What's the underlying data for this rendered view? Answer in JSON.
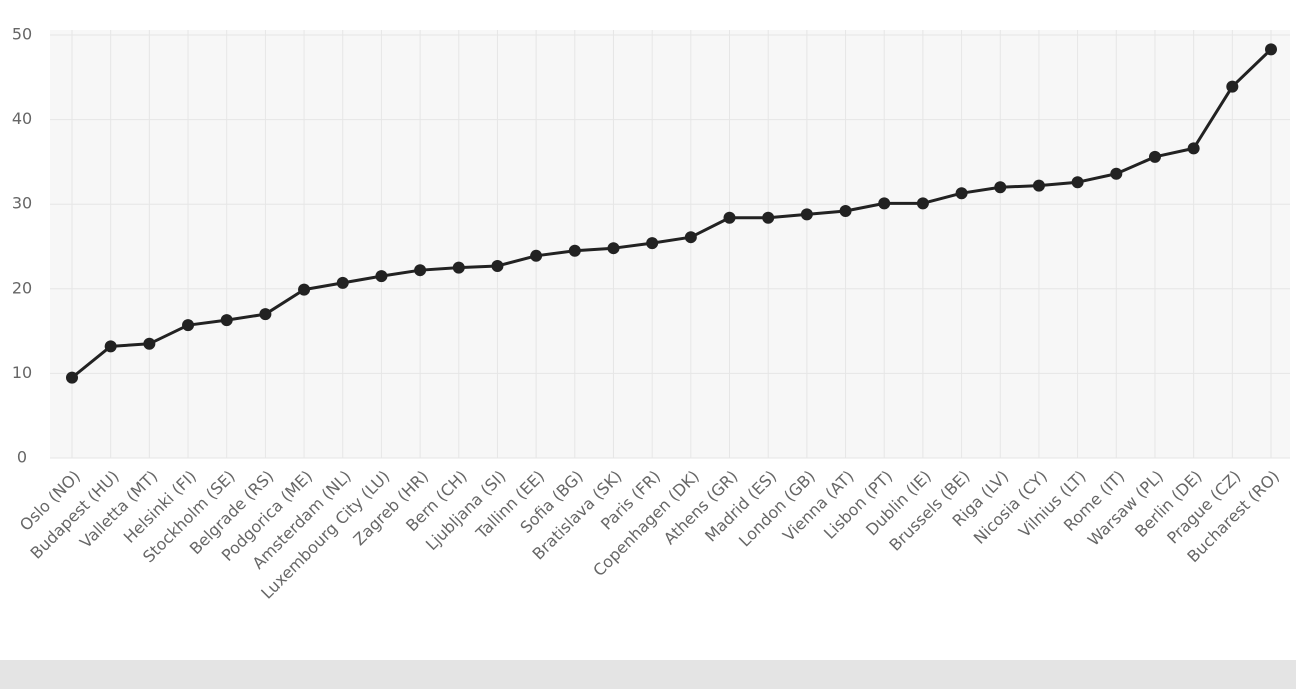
{
  "chart_data": {
    "type": "line",
    "categories": [
      "Oslo (NO)",
      "Budapest (HU)",
      "Valletta (MT)",
      "Helsinki (FI)",
      "Stockholm (SE)",
      "Belgrade (RS)",
      "Podgorica (ME)",
      "Amsterdam (NL)",
      "Luxembourg City (LU)",
      "Zagreb (HR)",
      "Bern (CH)",
      "Ljubljana (SI)",
      "Tallinn (EE)",
      "Sofia (BG)",
      "Bratislava (SK)",
      "Paris (FR)",
      "Copenhagen (DK)",
      "Athens (GR)",
      "Madrid (ES)",
      "London (GB)",
      "Vienna (AT)",
      "Lisbon (PT)",
      "Dublin (IE)",
      "Brussels (BE)",
      "Riga (LV)",
      "Nicosia (CY)",
      "Vilnius (LT)",
      "Rome (IT)",
      "Warsaw (PL)",
      "Berlin (DE)",
      "Prague (CZ)",
      "Bucharest (RO)"
    ],
    "values": [
      9.5,
      13.2,
      13.5,
      15.7,
      16.3,
      17.0,
      19.9,
      20.7,
      21.5,
      22.2,
      22.5,
      22.7,
      23.9,
      24.5,
      24.8,
      25.4,
      26.1,
      28.4,
      28.4,
      28.8,
      29.2,
      30.1,
      30.1,
      31.3,
      32.0,
      32.2,
      32.6,
      33.6,
      35.6,
      36.6,
      43.9,
      48.3
    ],
    "color": "#222222",
    "ylim": [
      0,
      50
    ],
    "yticks": [
      0,
      10,
      20,
      30,
      40,
      50
    ],
    "grid": true
  }
}
